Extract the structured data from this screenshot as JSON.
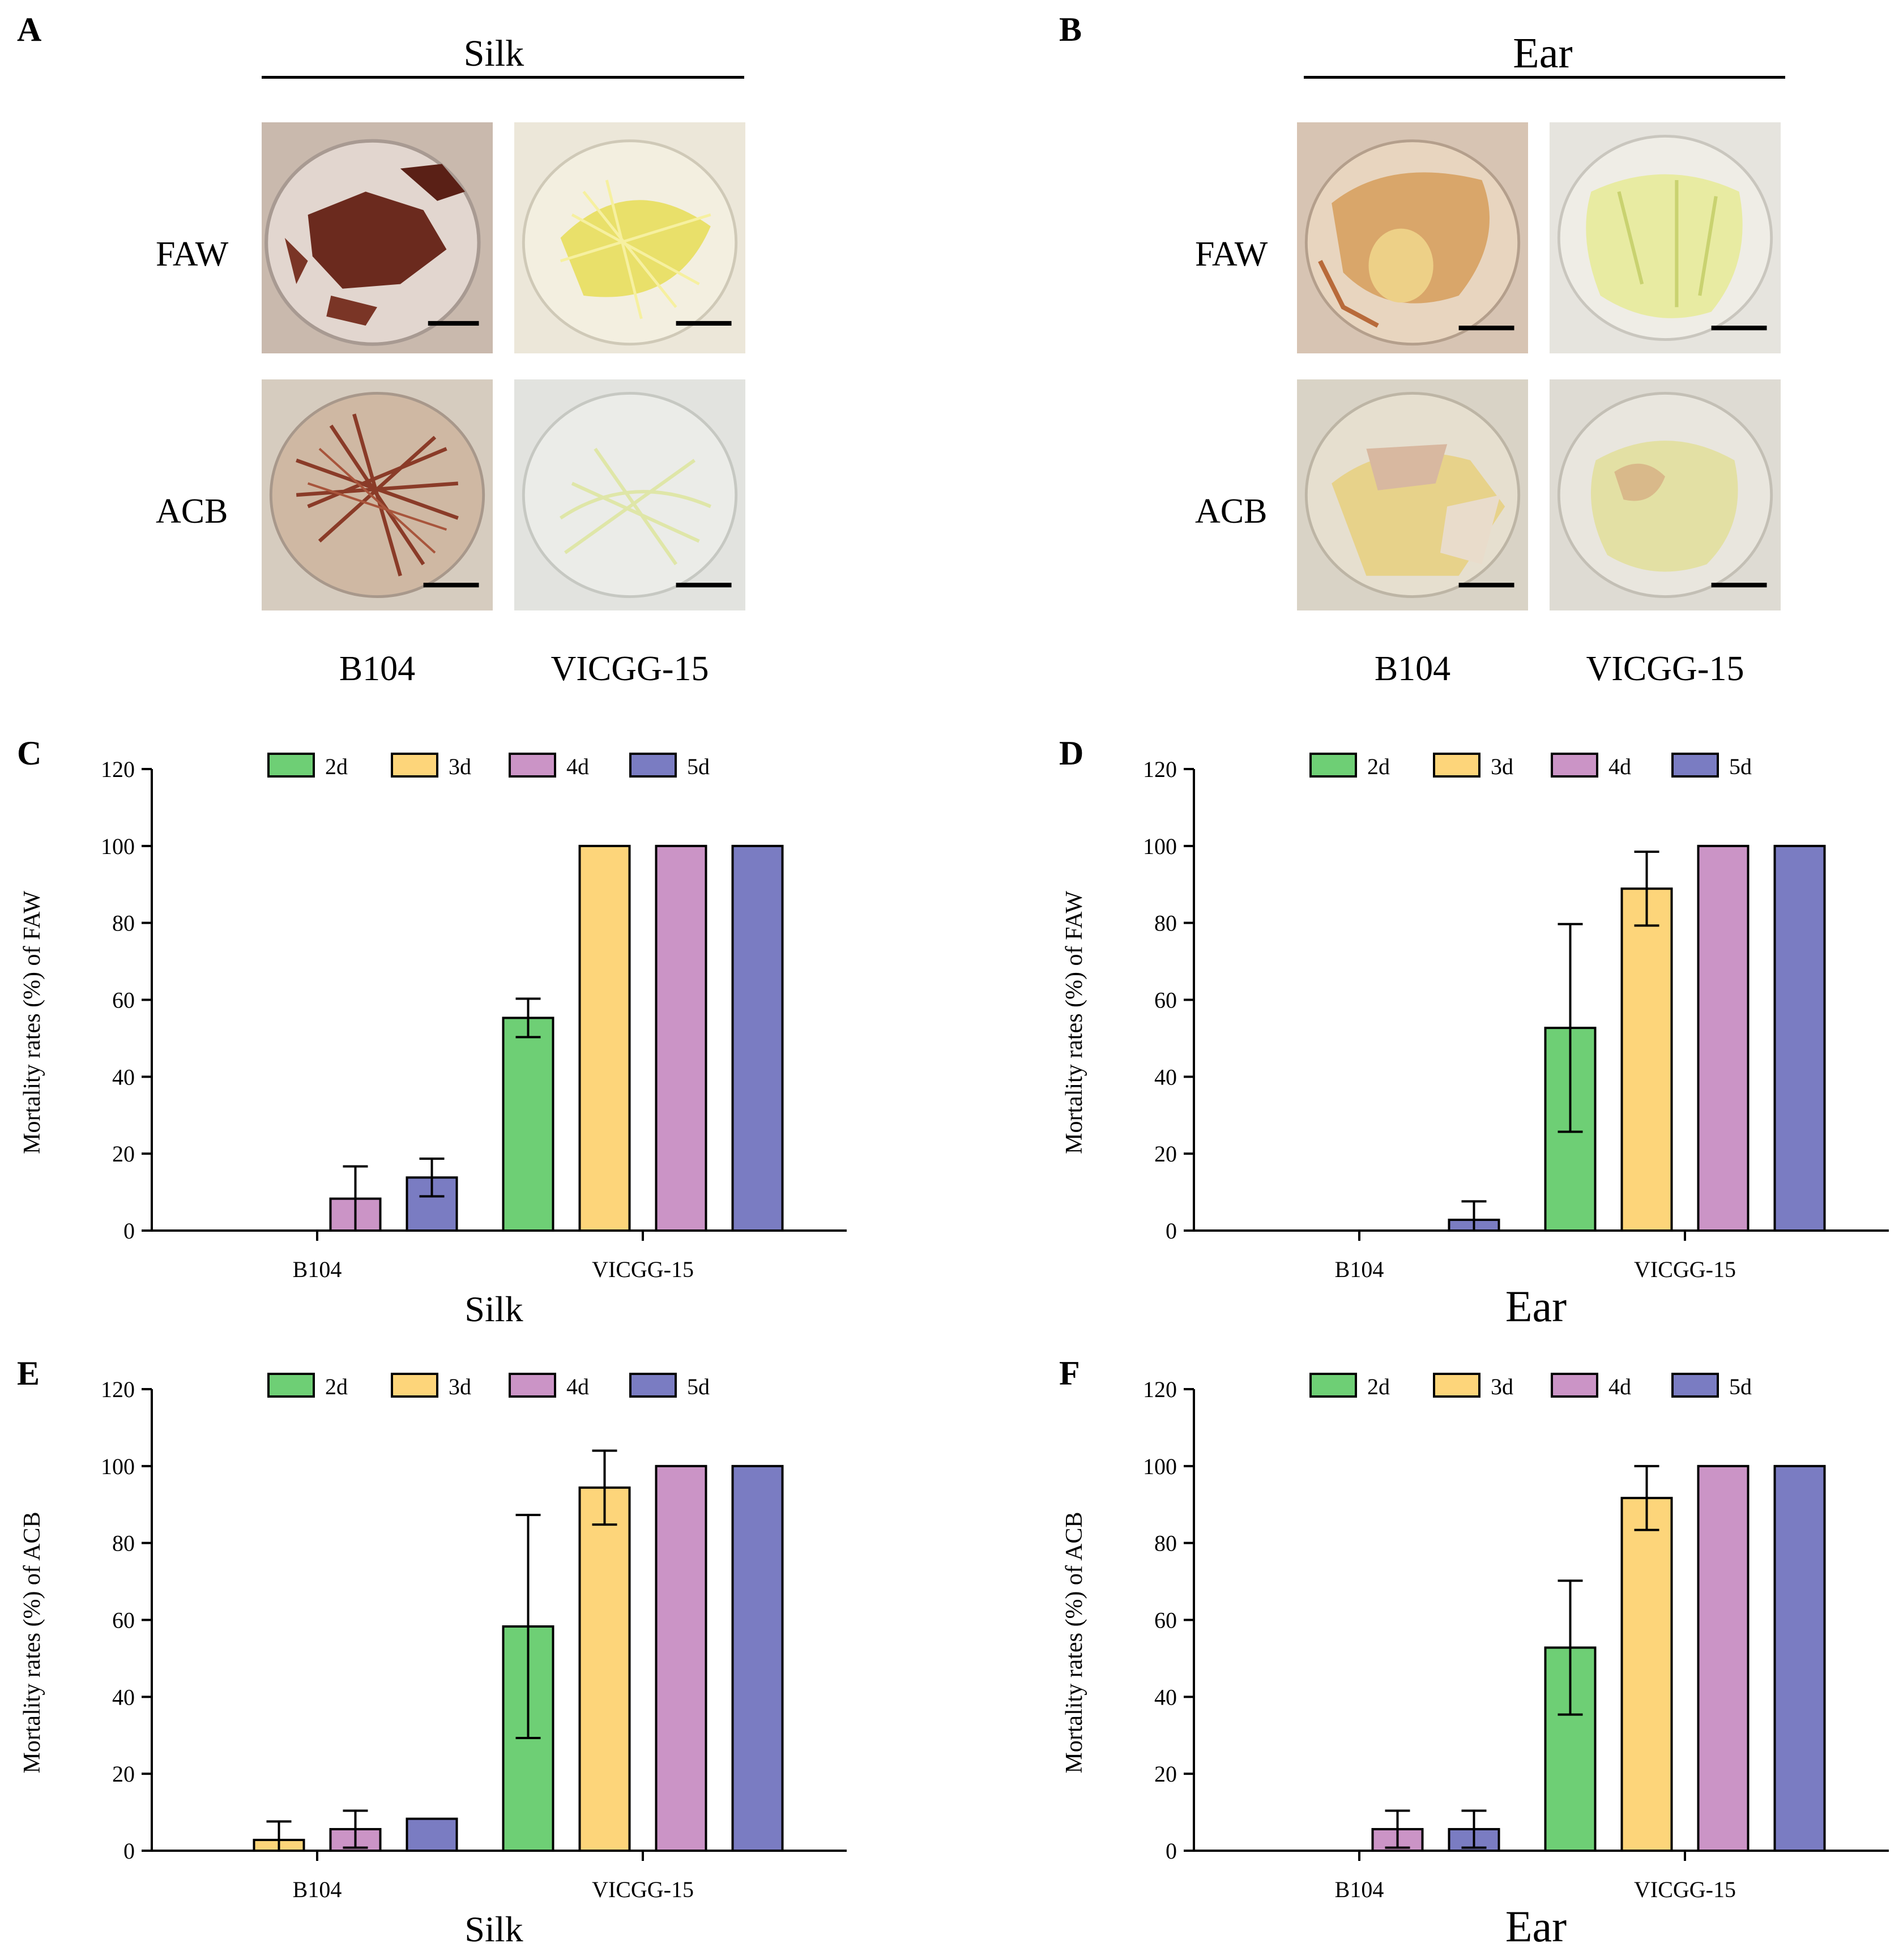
{
  "photo_panels": [
    {
      "letter": "A",
      "title": "Silk",
      "rows": [
        "FAW",
        "ACB"
      ],
      "cols": [
        "B104",
        "VICGG-15"
      ],
      "photos": [
        {
          "depicts": "b104-silk-faw"
        },
        {
          "depicts": "vicgg15-silk-faw"
        },
        {
          "depicts": "b104-silk-acb"
        },
        {
          "depicts": "vicgg15-silk-acb"
        }
      ]
    },
    {
      "letter": "B",
      "title": "Ear",
      "rows": [
        "FAW",
        "ACB"
      ],
      "cols": [
        "B104",
        "VICGG-15"
      ],
      "photos": [
        {
          "depicts": "b104-ear-faw"
        },
        {
          "depicts": "vicgg15-ear-faw"
        },
        {
          "depicts": "b104-ear-acb"
        },
        {
          "depicts": "vicgg15-ear-acb"
        }
      ]
    }
  ],
  "colors": {
    "2d": "#6ecf75",
    "3d": "#fdd57a",
    "4d": "#cb94c6",
    "5d": "#7a7cc2",
    "text": "#000000",
    "background": "#ffffff"
  },
  "chart_data": [
    {
      "letter": "C",
      "type": "bar",
      "xlabel": "Silk",
      "ylabel": "Mortality rates (%) of FAW",
      "categories": [
        "B104",
        "VICGG-15"
      ],
      "yticks": [
        0,
        20,
        40,
        60,
        80,
        100,
        120
      ],
      "ylim": [
        0,
        120
      ],
      "legend_position": "top",
      "series": [
        {
          "name": "2d",
          "values": [
            0,
            55.3
          ],
          "errors": [
            0,
            5
          ]
        },
        {
          "name": "3d",
          "values": [
            0,
            100
          ],
          "errors": [
            0,
            0
          ]
        },
        {
          "name": "4d",
          "values": [
            8.3,
            100
          ],
          "errors": [
            8.4,
            0
          ]
        },
        {
          "name": "5d",
          "values": [
            13.8,
            100
          ],
          "errors": [
            4.9,
            0
          ]
        }
      ]
    },
    {
      "letter": "D",
      "type": "bar",
      "xlabel": "Ear",
      "ylabel": "Mortality rates (%) of FAW",
      "categories": [
        "B104",
        "VICGG-15"
      ],
      "yticks": [
        0,
        20,
        40,
        60,
        80,
        100,
        120
      ],
      "ylim": [
        0,
        120
      ],
      "legend_position": "top",
      "series": [
        {
          "name": "2d",
          "values": [
            0,
            52.7
          ],
          "errors": [
            0,
            27
          ]
        },
        {
          "name": "3d",
          "values": [
            0,
            88.9
          ],
          "errors": [
            0,
            9.6
          ]
        },
        {
          "name": "4d",
          "values": [
            0,
            100
          ],
          "errors": [
            0,
            0
          ]
        },
        {
          "name": "5d",
          "values": [
            2.8,
            100
          ],
          "errors": [
            4.8,
            0
          ]
        }
      ]
    },
    {
      "letter": "E",
      "type": "bar",
      "xlabel": "Silk",
      "ylabel": "Mortality rates (%) of ACB",
      "categories": [
        "B104",
        "VICGG-15"
      ],
      "yticks": [
        0,
        20,
        40,
        60,
        80,
        100,
        120
      ],
      "ylim": [
        0,
        120
      ],
      "legend_position": "top",
      "series": [
        {
          "name": "2d",
          "values": [
            0,
            58.3
          ],
          "errors": [
            0,
            29
          ]
        },
        {
          "name": "3d",
          "values": [
            2.8,
            94.4
          ],
          "errors": [
            4.8,
            9.6
          ]
        },
        {
          "name": "4d",
          "values": [
            5.6,
            100
          ],
          "errors": [
            4.8,
            0
          ]
        },
        {
          "name": "5d",
          "values": [
            8.3,
            100
          ],
          "errors": [
            0,
            0
          ]
        }
      ]
    },
    {
      "letter": "F",
      "type": "bar",
      "xlabel": "Ear",
      "ylabel": "Mortality rates (%) of ACB",
      "categories": [
        "B104",
        "VICGG-15"
      ],
      "yticks": [
        0,
        20,
        40,
        60,
        80,
        100,
        120
      ],
      "ylim": [
        0,
        120
      ],
      "legend_position": "top",
      "series": [
        {
          "name": "2d",
          "values": [
            0,
            52.8
          ],
          "errors": [
            0,
            17.4
          ]
        },
        {
          "name": "3d",
          "values": [
            0,
            91.7
          ],
          "errors": [
            0,
            8.3
          ]
        },
        {
          "name": "4d",
          "values": [
            5.6,
            100
          ],
          "errors": [
            4.8,
            0
          ]
        },
        {
          "name": "5d",
          "values": [
            5.6,
            100
          ],
          "errors": [
            4.8,
            0
          ]
        }
      ]
    }
  ]
}
